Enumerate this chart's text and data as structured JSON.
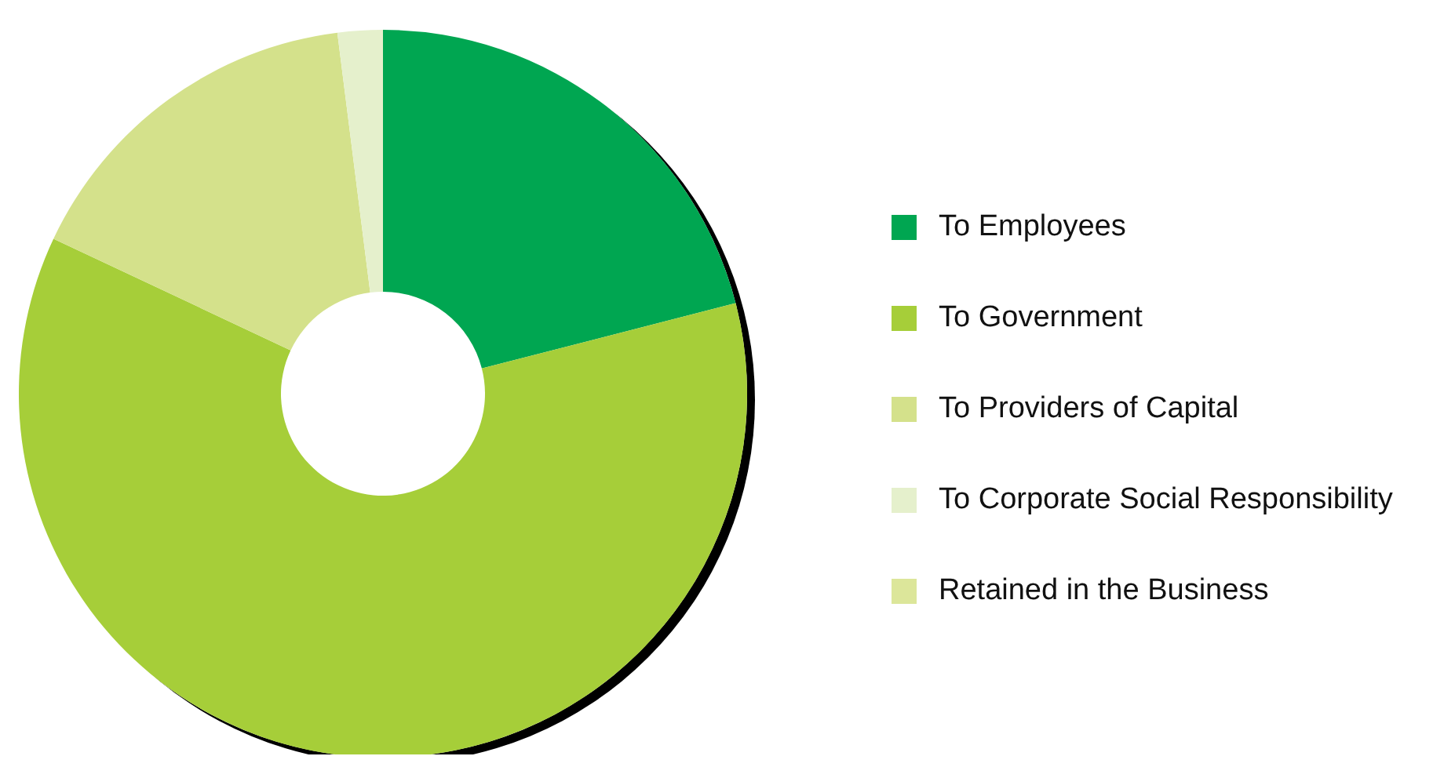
{
  "chart_data": {
    "type": "donut",
    "categories": [
      "To Employees",
      "To Government",
      "To Providers of Capital",
      "To Corporate Social Responsibility",
      "Retained in the Business"
    ],
    "values": [
      21,
      61,
      16,
      2,
      0
    ],
    "colors": [
      "#00a651",
      "#a6ce39",
      "#d4e18b",
      "#e5f0cc",
      "#dce69a"
    ],
    "legend": "right"
  }
}
